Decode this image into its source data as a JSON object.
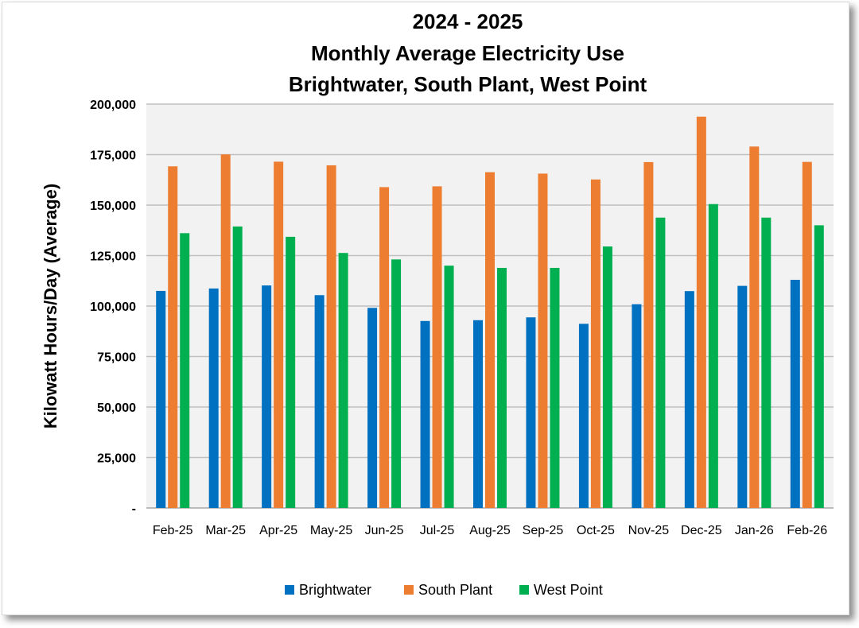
{
  "chart_data": {
    "type": "bar",
    "title": [
      "2024 - 2025",
      "Monthly Average Electricity Use",
      "Brightwater, South Plant, West Point"
    ],
    "xlabel": "",
    "ylabel": "Kilowatt Hours/Day (Average)",
    "ylim": [
      0,
      200000
    ],
    "yticks": [
      0,
      25000,
      50000,
      75000,
      100000,
      125000,
      150000,
      175000,
      200000
    ],
    "ytick_labels": [
      "-",
      "25,000",
      "50,000",
      "75,000",
      "100,000",
      "125,000",
      "150,000",
      "175,000",
      "200,000"
    ],
    "grid": true,
    "legend_position": "bottom",
    "categories": [
      "Feb-25",
      "Mar-25",
      "Apr-25",
      "May-25",
      "Jun-25",
      "Jul-25",
      "Aug-25",
      "Sep-25",
      "Oct-25",
      "Nov-25",
      "Dec-25",
      "Jan-26",
      "Feb-26"
    ],
    "series": [
      {
        "name": "Brightwater",
        "color": "#0070c0",
        "values": [
          107500,
          108700,
          110200,
          105400,
          99100,
          92600,
          93000,
          94400,
          91200,
          100900,
          107400,
          110000,
          113000
        ]
      },
      {
        "name": "South Plant",
        "color": "#ed7d31",
        "values": [
          169200,
          175100,
          171500,
          169700,
          158900,
          159300,
          166300,
          165600,
          162700,
          171300,
          193800,
          179000,
          171400
        ]
      },
      {
        "name": "West Point",
        "color": "#00b050",
        "values": [
          136100,
          139400,
          134300,
          126300,
          123100,
          120000,
          118900,
          118900,
          129500,
          143800,
          150500,
          143800,
          140000
        ]
      }
    ]
  }
}
